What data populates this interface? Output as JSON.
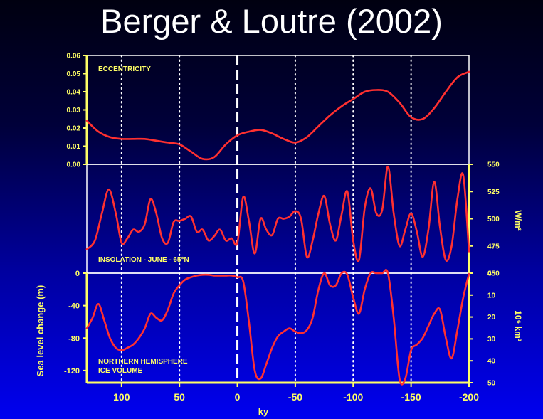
{
  "slide": {
    "title": "Berger & Loutre (2002)",
    "background_top": "#000010",
    "background_bottom": "#0000f0"
  },
  "colors": {
    "curve": "#ff3030",
    "axis": "#ffff66",
    "frame": "#ffffff",
    "labels": "#ffff66",
    "present_line": "#ffffff"
  },
  "chart_data": [
    {
      "id": "eccentricity",
      "type": "line",
      "title": "ECCENTRICITY",
      "xlim": [
        130,
        -200
      ],
      "ylim": [
        0,
        0.06
      ],
      "yticks": [
        0,
        0.01,
        0.02,
        0.03,
        0.04,
        0.05,
        0.06
      ],
      "ytick_labels": [
        "0.00",
        "0.01",
        "0.02",
        "0.03",
        "0.04",
        "0.05",
        "0.06"
      ],
      "x": [
        130,
        120,
        110,
        100,
        90,
        80,
        70,
        60,
        50,
        40,
        30,
        20,
        10,
        0,
        -10,
        -20,
        -30,
        -40,
        -50,
        -60,
        -70,
        -80,
        -90,
        -100,
        -110,
        -120,
        -130,
        -140,
        -150,
        -160,
        -170,
        -180,
        -190,
        -200
      ],
      "y": [
        0.024,
        0.018,
        0.015,
        0.014,
        0.014,
        0.014,
        0.013,
        0.012,
        0.011,
        0.007,
        0.003,
        0.004,
        0.011,
        0.016,
        0.018,
        0.019,
        0.017,
        0.014,
        0.012,
        0.015,
        0.021,
        0.027,
        0.032,
        0.036,
        0.04,
        0.041,
        0.04,
        0.034,
        0.026,
        0.025,
        0.031,
        0.04,
        0.048,
        0.051
      ]
    },
    {
      "id": "insolation",
      "type": "line",
      "title": "INSOLATION - JUNE - 65°N",
      "xlim": [
        130,
        -200
      ],
      "ylim": [
        450,
        550
      ],
      "yticks": [
        450,
        475,
        500,
        525,
        550
      ],
      "ytick_labels": [
        "450",
        "475",
        "500",
        "525",
        "550"
      ],
      "ylabel": "W/m²",
      "x": [
        130,
        123,
        117,
        111,
        105,
        100,
        95,
        90,
        85,
        80,
        75,
        70,
        65,
        60,
        55,
        50,
        45,
        40,
        35,
        30,
        25,
        20,
        15,
        10,
        5,
        0,
        -5,
        -10,
        -15,
        -20,
        -25,
        -30,
        -35,
        -40,
        -45,
        -50,
        -55,
        -60,
        -65,
        -70,
        -75,
        -80,
        -85,
        -90,
        -95,
        -100,
        -105,
        -110,
        -115,
        -120,
        -125,
        -130,
        -135,
        -140,
        -145,
        -150,
        -155,
        -160,
        -165,
        -170,
        -175,
        -180,
        -185,
        -190,
        -195,
        -200
      ],
      "y": [
        472,
        480,
        505,
        527,
        505,
        478,
        482,
        490,
        488,
        495,
        518,
        505,
        482,
        478,
        497,
        498,
        500,
        502,
        488,
        490,
        480,
        484,
        490,
        480,
        482,
        478,
        520,
        498,
        468,
        500,
        490,
        485,
        500,
        500,
        502,
        507,
        500,
        465,
        480,
        505,
        521,
        495,
        480,
        504,
        525,
        480,
        462,
        510,
        528,
        505,
        508,
        548,
        505,
        475,
        490,
        505,
        488,
        465,
        490,
        534,
        492,
        462,
        475,
        518,
        540,
        470
      ]
    },
    {
      "id": "ice-volume",
      "type": "line",
      "title": "NORTHERN HEMISPHERE ICE VOLUME",
      "xlim": [
        130,
        -200
      ],
      "xticks": [
        100,
        50,
        0,
        -50,
        -100,
        -150,
        -200
      ],
      "xtick_labels": [
        "100",
        "50",
        "0",
        "-50",
        "-100",
        "-150",
        "-200"
      ],
      "xlabel": "ky",
      "ylim": [
        -135,
        0
      ],
      "yticks": [
        0,
        -40,
        -80,
        -120
      ],
      "ytick_labels": [
        "0",
        "-40",
        "-80",
        "-120"
      ],
      "ylabel": "Sea level change (m)",
      "right_axis": {
        "ylabel": "10⁶ km³",
        "yticks": [
          0,
          10,
          20,
          30,
          40,
          50
        ],
        "ytick_labels": [
          "0",
          "10",
          "20",
          "30",
          "40",
          "50"
        ]
      },
      "x": [
        130,
        125,
        120,
        115,
        110,
        105,
        100,
        95,
        90,
        85,
        80,
        75,
        70,
        65,
        60,
        55,
        50,
        45,
        40,
        35,
        30,
        25,
        20,
        15,
        10,
        5,
        0,
        -5,
        -10,
        -15,
        -20,
        -25,
        -30,
        -35,
        -40,
        -45,
        -50,
        -55,
        -60,
        -65,
        -70,
        -75,
        -80,
        -85,
        -90,
        -95,
        -100,
        -105,
        -110,
        -115,
        -120,
        -125,
        -130,
        -135,
        -140,
        -145,
        -150,
        -155,
        -160,
        -165,
        -170,
        -175,
        -180,
        -185,
        -190,
        -195,
        -200
      ],
      "y": [
        -68,
        -55,
        -38,
        -58,
        -80,
        -92,
        -95,
        -92,
        -88,
        -80,
        -68,
        -50,
        -55,
        -58,
        -45,
        -25,
        -15,
        -8,
        -5,
        -3,
        -2,
        -2,
        -3,
        -3,
        -3,
        -3,
        -5,
        -10,
        -60,
        -120,
        -130,
        -112,
        -92,
        -78,
        -72,
        -68,
        -72,
        -74,
        -70,
        -55,
        -20,
        0,
        -15,
        -15,
        0,
        -2,
        -30,
        -50,
        -20,
        0,
        0,
        0,
        0,
        -55,
        -130,
        -130,
        -95,
        -88,
        -80,
        -65,
        -50,
        -45,
        -80,
        -105,
        -70,
        -30,
        -1
      ]
    }
  ]
}
